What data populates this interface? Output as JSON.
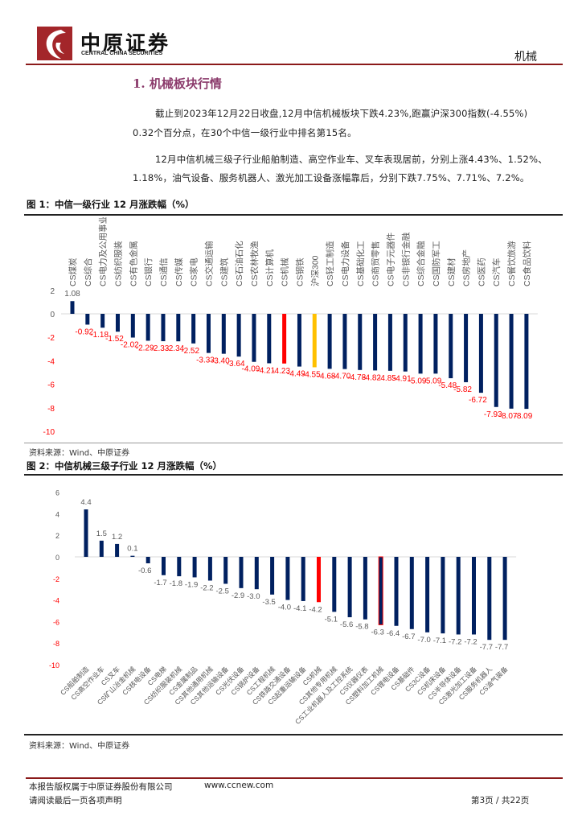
{
  "header": {
    "logo_cn": "中原证券",
    "logo_en": "CENTRAL CHINA SECURITIES",
    "sector": "机械"
  },
  "section_title": "1. 机械板块行情",
  "paragraphs": [
    "截止到2023年12月22日收盘,12月中信机械板块下跌4.23%,跑赢沪深300指数(-4.55%)",
    "0.32个百分点，在30个中信一级行业中排名第15名。",
    "12月中信机械三级子行业船舶制造、高空作业车、叉车表现居前，分别上涨4.43%、1.52%、",
    "1.18%，油气设备、服务机器人、激光加工设备涨幅靠后，分别下跌7.75%、7.71%、7.2%。"
  ],
  "figure1": {
    "title": "图 1：中信一级行业 12 月涨跌幅（%）",
    "source": "资料来源：Wind、中原证券"
  },
  "figure2": {
    "title": "图 2：中信机械三级子行业 12 月涨跌幅（%）",
    "source": "资料来源：Wind、中原证券"
  },
  "footer": {
    "copyright": "本报告版权属于中原证券股份有限公司",
    "website": "www.ccnew.com",
    "disclaimer": "请阅读最后一页各项声明",
    "page": "第3页 / 共22页"
  },
  "colors": {
    "bar": "#002060",
    "highlight": "#ff0000",
    "index": "#ffc000",
    "negative_label": "#ff0000",
    "brand": "#8b1a1a"
  },
  "chart_data": [
    {
      "type": "bar",
      "ylim": [
        -10,
        2
      ],
      "yticks": [
        2,
        0,
        -2,
        -4,
        -6,
        -8,
        -10
      ],
      "categories": [
        "CS煤炭",
        "CS综合",
        "CS电力及公用事业",
        "CS纺织服装",
        "CS有色金属",
        "CS银行",
        "CS通信",
        "CS传媒",
        "CS家电",
        "CS交通运输",
        "CS建筑",
        "CS石油石化",
        "CS农林牧渔",
        "CS计算机",
        "CS机械",
        "CS钢铁",
        "沪深300",
        "CS轻工制造",
        "CS电力设备",
        "CS基础化工",
        "CS商贸零售",
        "CS电子元器件",
        "CS非银行金融",
        "CS综合金融",
        "CS国防军工",
        "CS建材",
        "CS房地产",
        "CS医药",
        "CS汽车",
        "CS餐饮旅游",
        "CS食品饮料"
      ],
      "values": [
        1.08,
        -0.92,
        -1.18,
        -1.52,
        -2.02,
        -2.29,
        -2.33,
        -2.34,
        -2.52,
        -3.33,
        -3.4,
        -3.64,
        -4.09,
        -4.21,
        -4.23,
        -4.49,
        -4.55,
        -4.68,
        -4.7,
        -4.78,
        -4.82,
        -4.85,
        -4.91,
        -5.09,
        -5.09,
        -5.48,
        -5.82,
        -6.72,
        -7.93,
        -8.07,
        -8.09
      ],
      "highlight": {
        "CS机械": "#ff0000",
        "沪深300": "#ffc000"
      }
    },
    {
      "type": "bar",
      "ylim": [
        -10,
        6
      ],
      "yticks": [
        6,
        4,
        2,
        0,
        -2,
        -4,
        -6,
        -8,
        -10
      ],
      "categories": [
        "CS船舶制造",
        "CS高空作业车",
        "CS叉车",
        "CS矿山冶金机械",
        "CS核电设备",
        "CS电梯",
        "CS纺织服装机械",
        "CS金属制品",
        "CS其他通用机械",
        "CS其他运输设备",
        "CS光伏设备",
        "CS锅炉设备",
        "CS工程机械",
        "CS铁路交通设备",
        "CS起重运输设备",
        "CS机械",
        "CS其他专用机械",
        "CS工业机器人及工控系统",
        "CS仪器仪表",
        "CS塑料加工机械",
        "CS锂电设备",
        "CS基础件",
        "CS3C设备",
        "CS机床设备",
        "CS半导体设备",
        "CS激光加工设备",
        "CS服务机器人",
        "CS油气装备"
      ],
      "values": [
        4.4,
        1.5,
        1.2,
        0.1,
        -0.6,
        -1.7,
        -1.8,
        -1.9,
        -2.2,
        -2.5,
        -2.9,
        -3.0,
        -3.5,
        -4.0,
        -4.1,
        -4.2,
        -5.1,
        -5.6,
        -5.8,
        -6.3,
        -6.4,
        -6.7,
        -7.0,
        -7.1,
        -7.2,
        -7.2,
        -7.7,
        -7.7
      ],
      "highlight": {
        "CS机械": "#ff0000"
      },
      "outlined": {
        "CS塑料加工机械": "#ff0000"
      }
    }
  ]
}
